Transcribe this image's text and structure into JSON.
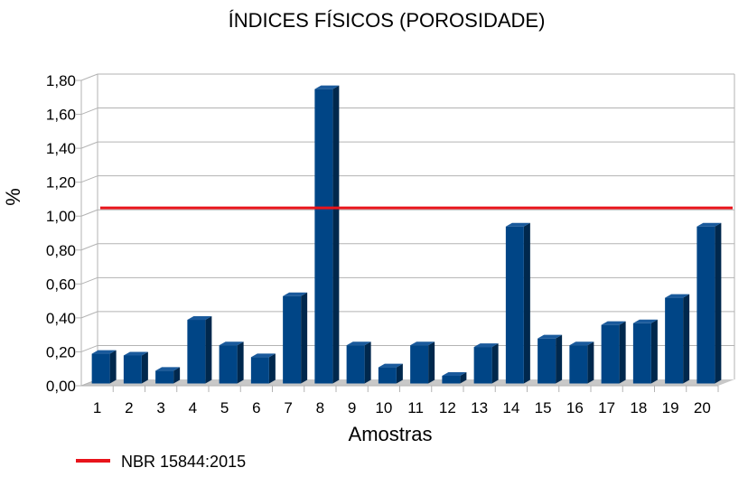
{
  "chart_data": {
    "type": "bar",
    "title": "ÍNDICES FÍSICOS (POROSIDADE)",
    "xlabel": "Amostras",
    "ylabel": "%",
    "ylim": [
      0,
      1.8
    ],
    "yticks": [
      "0,00",
      "0,20",
      "0,40",
      "0,60",
      "0,80",
      "1,00",
      "1,20",
      "1,40",
      "1,60",
      "1,80"
    ],
    "categories": [
      "1",
      "2",
      "3",
      "4",
      "5",
      "6",
      "7",
      "8",
      "9",
      "10",
      "11",
      "12",
      "13",
      "14",
      "15",
      "16",
      "17",
      "18",
      "19",
      "20"
    ],
    "values": [
      0.17,
      0.16,
      0.07,
      0.37,
      0.22,
      0.15,
      0.51,
      1.73,
      0.22,
      0.09,
      0.22,
      0.04,
      0.21,
      0.92,
      0.26,
      0.22,
      0.34,
      0.35,
      0.5,
      0.92
    ],
    "reference_line": {
      "value": 1.03,
      "label": "NBR 15844:2015",
      "color": "#e8141b"
    },
    "bar_color": "#004586",
    "legend": "bottom-left",
    "grid": true
  }
}
